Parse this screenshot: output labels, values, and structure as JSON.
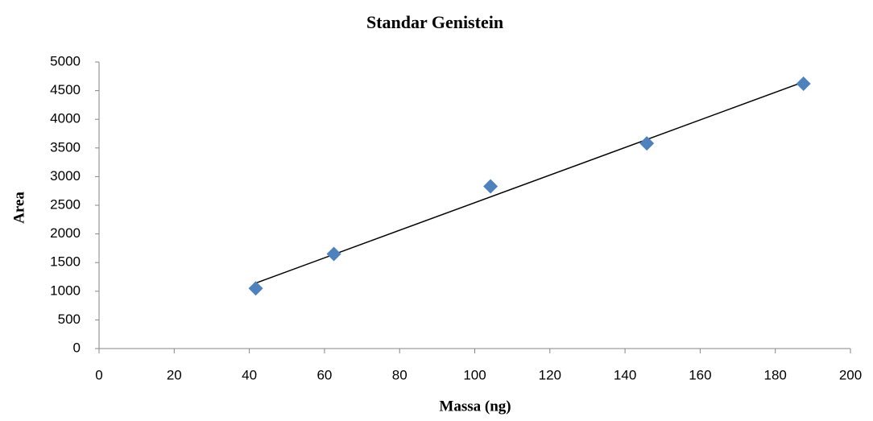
{
  "chart_data": {
    "type": "scatter",
    "title": "Standar Genistein",
    "x_label": "Massa (ng)",
    "y_label": "Area",
    "x": [
      41.7,
      62.5,
      104.2,
      145.8,
      187.5
    ],
    "values": [
      1050,
      1650,
      2830,
      3580,
      4620
    ],
    "color": "#4f81bd",
    "trendline": true,
    "xlim": [
      0,
      200
    ],
    "xticks": [
      0,
      20,
      40,
      60,
      80,
      100,
      120,
      140,
      160,
      180,
      200
    ],
    "ylim": [
      0,
      5000
    ],
    "yticks": [
      0,
      500,
      1000,
      1500,
      2000,
      2500,
      3000,
      3500,
      4000,
      4500,
      5000
    ],
    "grid": false
  }
}
